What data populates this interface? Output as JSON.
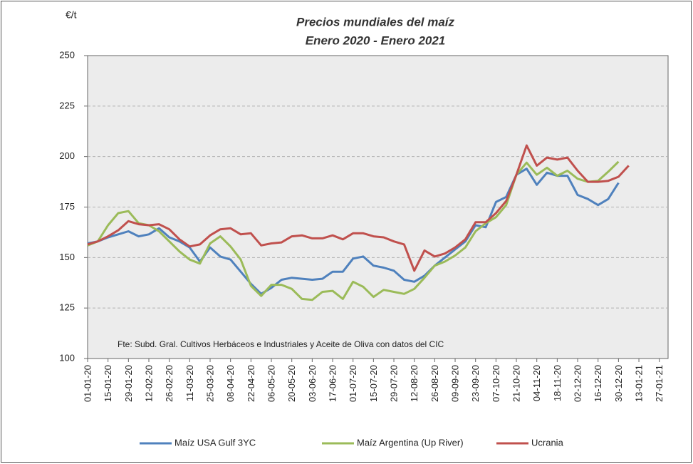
{
  "chart_data": {
    "type": "line",
    "title": "Precios mundiales del maíz",
    "subtitle": "Enero 2020 - Enero 2021",
    "y_label": "€/t",
    "annotation": "Fte: Subd. Gral. Cultivos Herbáceos e Industriales y Aceite de Oliva con datos del CIC",
    "x": [
      "2020-01-01",
      "2020-01-08",
      "2020-01-15",
      "2020-01-22",
      "2020-01-29",
      "2020-02-05",
      "2020-02-12",
      "2020-02-19",
      "2020-02-26",
      "2020-03-04",
      "2020-03-11",
      "2020-03-18",
      "2020-03-25",
      "2020-04-01",
      "2020-04-08",
      "2020-04-15",
      "2020-04-22",
      "2020-04-29",
      "2020-05-06",
      "2020-05-13",
      "2020-05-20",
      "2020-05-27",
      "2020-06-03",
      "2020-06-10",
      "2020-06-17",
      "2020-06-24",
      "2020-07-01",
      "2020-07-08",
      "2020-07-15",
      "2020-07-22",
      "2020-07-29",
      "2020-08-05",
      "2020-08-12",
      "2020-08-19",
      "2020-08-26",
      "2020-09-02",
      "2020-09-09",
      "2020-09-16",
      "2020-09-23",
      "2020-09-30",
      "2020-10-07",
      "2020-10-14",
      "2020-10-21",
      "2020-10-28",
      "2020-11-04",
      "2020-11-11",
      "2020-11-18",
      "2020-11-25",
      "2020-12-02",
      "2020-12-09",
      "2020-12-16",
      "2020-12-23",
      "2020-12-30",
      "2021-01-06"
    ],
    "series": [
      {
        "name": "Maíz USA Gulf 3YC",
        "color": "#4f81bd",
        "values": [
          157,
          158,
          160,
          161.5,
          163,
          160.5,
          161.5,
          164.5,
          160,
          158,
          155,
          148,
          155,
          150.5,
          149,
          143,
          137,
          132,
          135,
          139,
          140,
          139.5,
          139,
          139.5,
          143,
          143,
          149.5,
          150.5,
          146,
          145,
          143.5,
          139,
          138,
          141,
          146,
          150,
          154,
          158,
          166,
          165,
          177.5,
          180,
          191,
          194,
          186,
          192,
          190.5,
          190.5,
          181,
          179,
          176,
          179,
          187,
          null
        ]
      },
      {
        "name": "Maíz Argentina (Up River)",
        "color": "#9bbb59",
        "values": [
          156,
          158,
          166,
          172,
          173,
          167,
          166,
          163,
          158,
          153,
          149,
          147,
          157,
          160.5,
          155.5,
          149,
          136,
          131,
          136.5,
          136.5,
          134.5,
          129.5,
          129,
          133,
          133.5,
          129.5,
          138,
          135.5,
          130.5,
          134,
          133,
          132,
          134.5,
          140,
          146,
          148,
          151,
          155,
          163,
          167,
          170,
          176,
          191,
          197,
          191,
          194.5,
          190.5,
          193,
          189,
          187.5,
          188,
          192.5,
          197.5,
          null
        ]
      },
      {
        "name": "Ucrania",
        "color": "#c0504d",
        "values": [
          156.5,
          158,
          160.5,
          163.5,
          168,
          166.5,
          166,
          166.5,
          164,
          159,
          155.5,
          156.5,
          161,
          164,
          164.5,
          161.5,
          162,
          156,
          157,
          157.5,
          160.5,
          161,
          159.5,
          159.5,
          161,
          159,
          162,
          162,
          160.5,
          160,
          158,
          156.5,
          143.5,
          153.5,
          150.5,
          152,
          155,
          159,
          167.5,
          167.5,
          172,
          178,
          191,
          205.5,
          195.5,
          199.5,
          198.5,
          199.5,
          193,
          187.5,
          187.5,
          188,
          190,
          195.5
        ]
      }
    ],
    "xlim": [
      "2020-01-01",
      "2021-02-02"
    ],
    "xticks": [
      {
        "value": "2020-01-01",
        "label": "01-01-20"
      },
      {
        "value": "2020-01-15",
        "label": "15-01-20"
      },
      {
        "value": "2020-01-29",
        "label": "29-01-20"
      },
      {
        "value": "2020-02-12",
        "label": "12-02-20"
      },
      {
        "value": "2020-02-26",
        "label": "26-02-20"
      },
      {
        "value": "2020-03-11",
        "label": "11-03-20"
      },
      {
        "value": "2020-03-25",
        "label": "25-03-20"
      },
      {
        "value": "2020-04-08",
        "label": "08-04-20"
      },
      {
        "value": "2020-04-22",
        "label": "22-04-20"
      },
      {
        "value": "2020-05-06",
        "label": "06-05-20"
      },
      {
        "value": "2020-05-20",
        "label": "20-05-20"
      },
      {
        "value": "2020-06-03",
        "label": "03-06-20"
      },
      {
        "value": "2020-06-17",
        "label": "17-06-20"
      },
      {
        "value": "2020-07-01",
        "label": "01-07-20"
      },
      {
        "value": "2020-07-15",
        "label": "15-07-20"
      },
      {
        "value": "2020-07-29",
        "label": "29-07-20"
      },
      {
        "value": "2020-08-12",
        "label": "12-08-20"
      },
      {
        "value": "2020-08-26",
        "label": "26-08-20"
      },
      {
        "value": "2020-09-09",
        "label": "09-09-20"
      },
      {
        "value": "2020-09-23",
        "label": "23-09-20"
      },
      {
        "value": "2020-10-07",
        "label": "07-10-20"
      },
      {
        "value": "2020-10-21",
        "label": "21-10-20"
      },
      {
        "value": "2020-11-04",
        "label": "04-11-20"
      },
      {
        "value": "2020-11-18",
        "label": "18-11-20"
      },
      {
        "value": "2020-12-02",
        "label": "02-12-20"
      },
      {
        "value": "2020-12-16",
        "label": "16-12-20"
      },
      {
        "value": "2020-12-30",
        "label": "30-12-20"
      },
      {
        "value": "2021-01-13",
        "label": "13-01-21"
      },
      {
        "value": "2021-01-27",
        "label": "27-01-21"
      }
    ],
    "ylim": [
      100,
      250
    ],
    "yticks": [
      100,
      125,
      150,
      175,
      200,
      225,
      250
    ],
    "grid": true,
    "legend": "bottom"
  }
}
